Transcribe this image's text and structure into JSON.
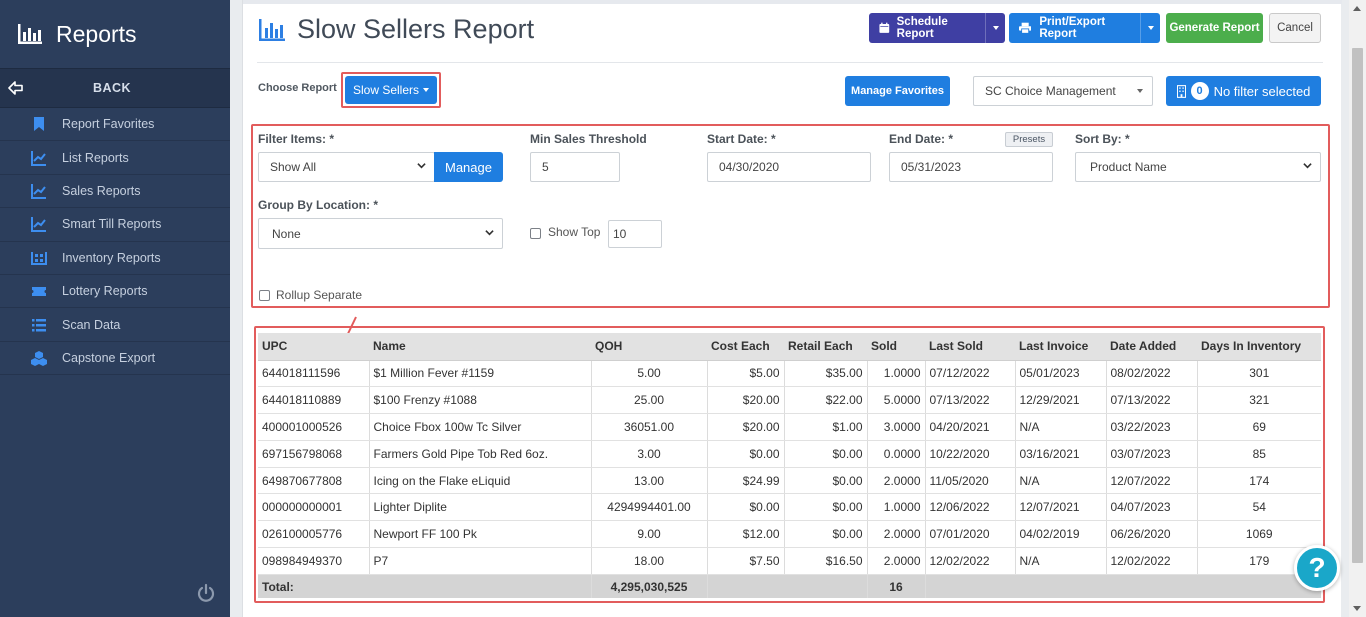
{
  "sidebar": {
    "title": "Reports",
    "back_label": "BACK",
    "items": [
      {
        "label": "Report Favorites",
        "icon": "bookmark-icon"
      },
      {
        "label": "List Reports",
        "icon": "line-chart-icon"
      },
      {
        "label": "Sales Reports",
        "icon": "line-chart-icon"
      },
      {
        "label": "Smart Till Reports",
        "icon": "line-chart-icon"
      },
      {
        "label": "Inventory Reports",
        "icon": "warehouse-icon"
      },
      {
        "label": "Lottery Reports",
        "icon": "ticket-icon"
      },
      {
        "label": "Scan Data",
        "icon": "list-icon"
      },
      {
        "label": "Capstone Export",
        "icon": "cubes-icon"
      }
    ]
  },
  "header": {
    "title": "Slow Sellers Report",
    "schedule_label": "Schedule Report",
    "print_label": "Print/Export Report",
    "generate_label": "Generate Report",
    "cancel_label": "Cancel"
  },
  "toolbar": {
    "choose_label": "Choose Report",
    "report_selected": "Slow Sellers",
    "manage_favorites_label": "Manage Favorites",
    "company_select": "SC Choice Management",
    "filter_count": "0",
    "filter_label": "No filter selected"
  },
  "filters": {
    "filter_items_label": "Filter Items: *",
    "filter_items_value": "Show All",
    "manage_label": "Manage",
    "min_sales_label": "Min Sales Threshold",
    "min_sales_value": "5",
    "start_date_label": "Start Date: *",
    "start_date_value": "04/30/2020",
    "end_date_label": "End Date: *",
    "presets_label": "Presets",
    "end_date_value": "05/31/2023",
    "sort_by_label": "Sort By: *",
    "sort_by_value": "Product Name",
    "group_by_label": "Group By Location: *",
    "group_by_value": "None",
    "show_top_label": "Show Top",
    "show_top_value": "10",
    "rollup_label": "Rollup Separate"
  },
  "table": {
    "columns": [
      "UPC",
      "Name",
      "QOH",
      "Cost Each",
      "Retail Each",
      "Sold",
      "Last Sold",
      "Last Invoice",
      "Date Added",
      "Days In Inventory"
    ],
    "rows": [
      [
        "644018111596",
        "$1 Million Fever #1159",
        "5.00",
        "$5.00",
        "$35.00",
        "1.0000",
        "07/12/2022",
        "05/01/2023",
        "08/02/2022",
        "301"
      ],
      [
        "644018110889",
        "$100 Frenzy #1088",
        "25.00",
        "$20.00",
        "$22.00",
        "5.0000",
        "07/13/2022",
        "12/29/2021",
        "07/13/2022",
        "321"
      ],
      [
        "400001000526",
        "Choice Fbox 100w Tc Silver",
        "36051.00",
        "$20.00",
        "$1.00",
        "3.0000",
        "04/20/2021",
        "N/A",
        "03/22/2023",
        "69"
      ],
      [
        "697156798068",
        "Farmers Gold Pipe Tob Red 6oz.",
        "3.00",
        "$0.00",
        "$0.00",
        "0.0000",
        "10/22/2020",
        "03/16/2021",
        "03/07/2023",
        "85"
      ],
      [
        "649870677808",
        "Icing on the Flake eLiquid",
        "13.00",
        "$24.99",
        "$0.00",
        "2.0000",
        "11/05/2020",
        "N/A",
        "12/07/2022",
        "174"
      ],
      [
        "000000000001",
        "Lighter Diplite",
        "4294994401.00",
        "$0.00",
        "$0.00",
        "1.0000",
        "12/06/2022",
        "12/07/2021",
        "04/07/2023",
        "54"
      ],
      [
        "026100005776",
        "Newport FF 100 Pk",
        "9.00",
        "$12.00",
        "$0.00",
        "2.0000",
        "07/01/2020",
        "04/02/2019",
        "06/26/2020",
        "1069"
      ],
      [
        "098984949370",
        "P7",
        "18.00",
        "$7.50",
        "$16.50",
        "2.0000",
        "12/02/2022",
        "N/A",
        "12/02/2022",
        "179"
      ]
    ],
    "total_label": "Total:",
    "total_qoh": "4,295,030,525",
    "total_sold": "16"
  },
  "help_label": "?",
  "colors": {
    "sidebar_bg": "#2c3e5c",
    "schedule_btn": "#3f3fa3",
    "print_btn": "#1f7ee0",
    "generate_btn": "#4cae4c",
    "highlight": "#e25c5c",
    "help": "#1aa7c9"
  }
}
